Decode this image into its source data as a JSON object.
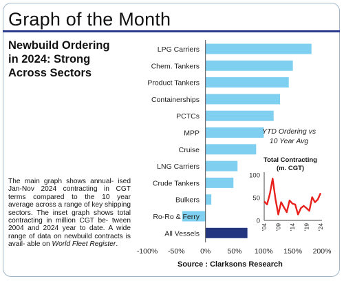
{
  "page": {
    "title": "Graph of the Month",
    "headline_lines": [
      "Newbuild Ordering",
      "in 2024: Strong",
      "Across Sectors"
    ],
    "description_lines": [
      "The main graph shows annual-",
      "ised Jan-Nov 2024 contracting",
      "in CGT terms compared to the",
      "10 year average across a",
      "range of key shipping sectors.",
      "The inset graph shows total",
      "contracting in million CGT be-",
      "tween 2004 and 2024 year to",
      "date. A wide range of data",
      "on newbuild contracts is avail-"
    ],
    "description_last_prefix": "able on ",
    "description_last_italic": "World Fleet Register",
    "description_last_suffix": ".",
    "source": "Source : Clarksons Research"
  },
  "chart_data": [
    {
      "type": "bar",
      "orientation": "horizontal",
      "annotation_lines": [
        "YTD Ordering vs",
        "10 Year Avg"
      ],
      "categories": [
        "LPG Carriers",
        "Chem. Tankers",
        "Product Tankers",
        "Containerships",
        "PCTCs",
        "MPP",
        "Cruise",
        "LNG Carriers",
        "Crude Tankers",
        "Bulkers",
        "Ro-Ro & Ferry",
        "All Vessels"
      ],
      "values": [
        182,
        150,
        143,
        128,
        117,
        100,
        87,
        55,
        48,
        10,
        -40,
        72
      ],
      "highlight_category": "All Vessels",
      "xlim": [
        -100,
        200
      ],
      "xticks": [
        "-100%",
        "-50%",
        "0%",
        "50%",
        "100%",
        "150%",
        "200%"
      ],
      "colors": {
        "bars": "#7fd0f0",
        "highlight": "#253680"
      }
    },
    {
      "type": "line",
      "title_lines": [
        "Total Contracting",
        "(m. CGT)"
      ],
      "x": [
        2004,
        2005,
        2006,
        2007,
        2008,
        2009,
        2010,
        2011,
        2012,
        2013,
        2014,
        2015,
        2016,
        2017,
        2018,
        2019,
        2020,
        2021,
        2022,
        2023,
        2024
      ],
      "values": [
        42,
        35,
        58,
        92,
        47,
        13,
        40,
        29,
        18,
        44,
        37,
        35,
        13,
        27,
        32,
        27,
        21,
        51,
        40,
        46,
        60
      ],
      "ylim": [
        0,
        100
      ],
      "yticks": [
        "0",
        "50",
        "100"
      ],
      "xticks": [
        "'04",
        "'09",
        "'14",
        "'19",
        "'24"
      ],
      "colors": {
        "line": "#e8211d"
      }
    }
  ]
}
